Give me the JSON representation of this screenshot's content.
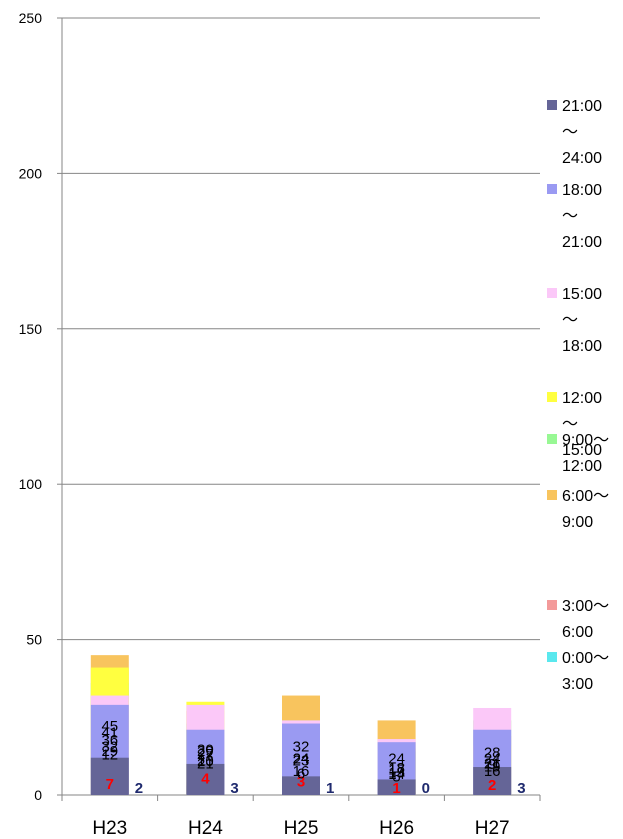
{
  "chart_data": {
    "type": "bar",
    "stacked": true,
    "categories": [
      "H23",
      "H24",
      "H25",
      "H26",
      "H27"
    ],
    "ylim": [
      0,
      250
    ],
    "yticks": [
      0,
      50,
      100,
      150,
      200,
      250
    ],
    "grid": true,
    "legend_position": "right",
    "series": [
      {
        "name": "0:00〜3:00",
        "legend_lines": [
          "0:00〜",
          "3:00"
        ],
        "color": "#5ae8ee",
        "values": [
          2,
          3,
          1,
          0,
          3
        ],
        "label_color": "#1f2a6e"
      },
      {
        "name": "3:00〜6:00",
        "legend_lines": [
          "3:00〜",
          "6:00"
        ],
        "color": "#f39a9a",
        "values": [
          7,
          4,
          3,
          1,
          2
        ],
        "label_color": "#ff0000"
      },
      {
        "name": "6:00〜9:00",
        "legend_lines": [
          "6:00〜",
          "9:00"
        ],
        "color": "#f8c45e",
        "values": [
          45,
          27,
          32,
          24,
          19
        ],
        "label_color": "#000000"
      },
      {
        "name": "9:00〜12:00",
        "legend_lines": [
          "9:00〜",
          "12:00"
        ],
        "color": "#98f894",
        "values": [
          36,
          23,
          24,
          14,
          24
        ],
        "label_color": "#000000"
      },
      {
        "name": "12:00〜15:00",
        "legend_lines": [
          "12:00",
          "〜",
          "15:00"
        ],
        "color": "#ffff40",
        "values": [
          41,
          30,
          16,
          15,
          16
        ],
        "label_color": "#000000"
      },
      {
        "name": "15:00〜18:00",
        "legend_lines": [
          "15:00",
          "〜",
          "18:00"
        ],
        "color": "#fbc8f8",
        "values": [
          32,
          29,
          24,
          18,
          28
        ],
        "label_color": "#000000"
      },
      {
        "name": "18:00〜21:00",
        "legend_lines": [
          "18:00",
          "〜",
          "21:00"
        ],
        "color": "#9a9af2",
        "values": [
          29,
          21,
          23,
          17,
          21
        ],
        "label_color": "#000000"
      },
      {
        "name": "21:00〜24:00",
        "legend_lines": [
          "21:00",
          "〜",
          "24:00"
        ],
        "color": "#656597",
        "values": [
          12,
          10,
          6,
          5,
          9
        ],
        "label_color": "#000000"
      }
    ]
  }
}
